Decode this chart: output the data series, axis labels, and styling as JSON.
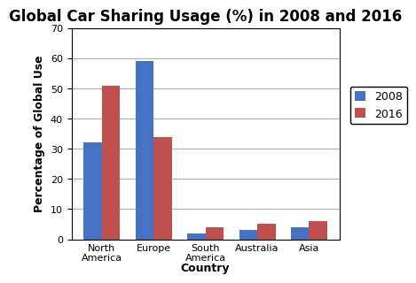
{
  "title": "Global Car Sharing Usage (%) in 2008 and 2016",
  "categories": [
    "North\nAmerica",
    "Europe",
    "South\nAmerica",
    "Australia",
    "Asia"
  ],
  "xlabel": "Country",
  "ylabel": "Percentage of Global Use",
  "values_2008": [
    32,
    59,
    2,
    3,
    4
  ],
  "values_2016": [
    51,
    34,
    4,
    5,
    6
  ],
  "color_2008": "#4472C4",
  "color_2016": "#C0504D",
  "legend_labels": [
    "2008",
    "2016"
  ],
  "ylim": [
    0,
    70
  ],
  "yticks": [
    0,
    10,
    20,
    30,
    40,
    50,
    60,
    70
  ],
  "bar_width": 0.35,
  "title_fontsize": 12,
  "axis_label_fontsize": 9,
  "tick_fontsize": 8,
  "legend_fontsize": 9,
  "background_color": "#ffffff",
  "grid_color": "#888888"
}
